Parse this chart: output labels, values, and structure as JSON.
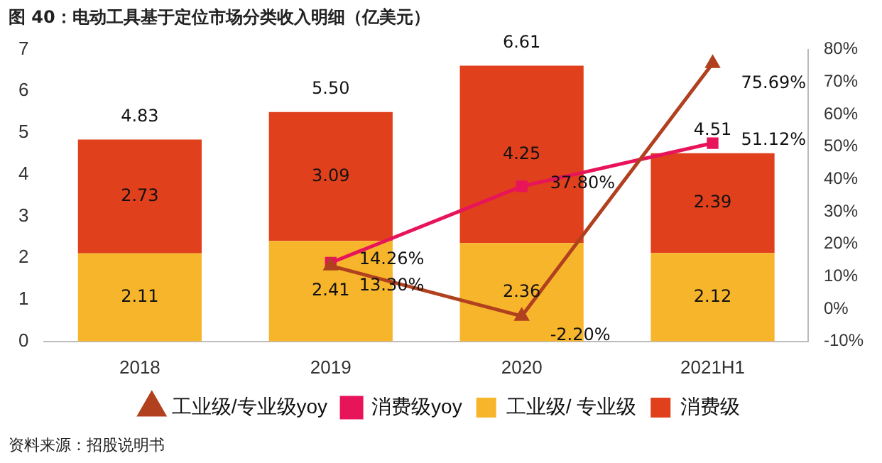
{
  "chart_data": {
    "type": "bar",
    "title": "图 40：电动工具基于定位市场分类收入明细（亿美元）",
    "annotations": [
      "资料来源：招股说明书"
    ],
    "categories": [
      "2018",
      "2019",
      "2020",
      "2021H1"
    ],
    "stacked": true,
    "legend": "bottom",
    "grid": false,
    "ylim": [
      0,
      7
    ],
    "yticks": [
      0,
      1,
      2,
      3,
      4,
      5,
      6,
      7
    ],
    "y2lim": [
      -10,
      80
    ],
    "y2ticks": [
      {
        "value": -10,
        "label": "-10%"
      },
      {
        "value": 0,
        "label": "0%"
      },
      {
        "value": 10,
        "label": "10%"
      },
      {
        "value": 20,
        "label": "20%"
      },
      {
        "value": 30,
        "label": "30%"
      },
      {
        "value": 40,
        "label": "40%"
      },
      {
        "value": 50,
        "label": "50%"
      },
      {
        "value": 60,
        "label": "60%"
      },
      {
        "value": 70,
        "label": "70%"
      },
      {
        "value": 80,
        "label": "80%"
      }
    ],
    "series": [
      {
        "name": "工业级/ 专业级",
        "color": "#f7b52c",
        "values": [
          2.11,
          2.41,
          2.36,
          2.12
        ],
        "value_labels": [
          "2.11",
          "2.41",
          "2.36",
          "2.12"
        ]
      },
      {
        "name": "消费级",
        "color": "#e0401c",
        "values": [
          2.73,
          3.09,
          4.25,
          2.39
        ],
        "value_labels": [
          "2.73",
          "3.09",
          "4.25",
          "2.39"
        ]
      },
      {
        "name": "工业级/专业级yoy",
        "type": "line",
        "axis": "y2",
        "marker": "triangle",
        "color": "#b0401e",
        "values": [
          null,
          13.3,
          -2.2,
          75.69
        ],
        "value_labels": [
          null,
          "13.30%",
          "-2.20%",
          "75.69%"
        ]
      },
      {
        "name": "消费级yoy",
        "type": "line",
        "axis": "y2",
        "marker": "square",
        "color": "#e8145a",
        "values": [
          null,
          14.26,
          37.8,
          51.12
        ],
        "value_labels": [
          null,
          "14.26%",
          "37.80%",
          "51.12%"
        ]
      }
    ],
    "totals": [
      "4.83",
      "5.50",
      "6.61",
      "4.51"
    ]
  }
}
